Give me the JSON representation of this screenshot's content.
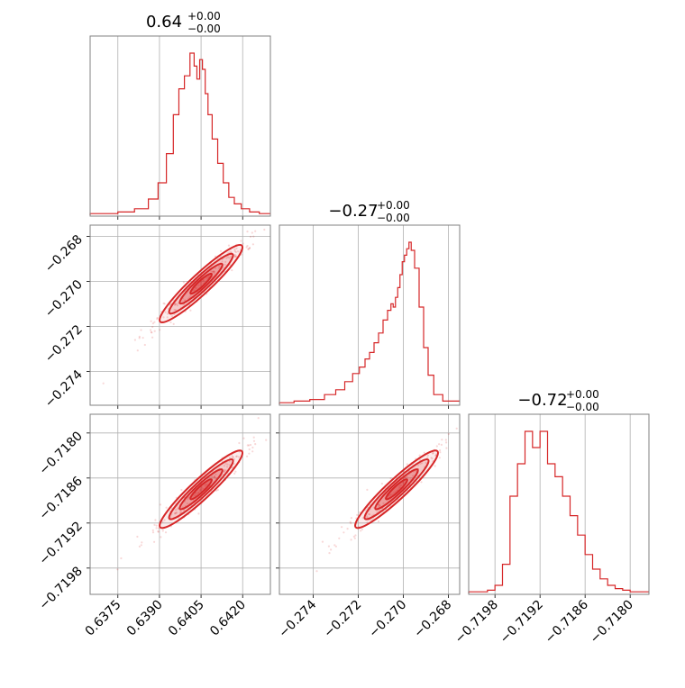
{
  "colors": {
    "series": "#d62728",
    "grid": "#b0b0b0",
    "frame": "#808080"
  },
  "chart_data": {
    "type": "corner",
    "grid": true,
    "params": [
      {
        "title": "0.64",
        "title_sup": "+0.00",
        "title_sub": "−0.00",
        "range": [
          0.6365,
          0.643
        ],
        "ticks": [
          0.6375,
          0.639,
          0.6405,
          0.642
        ],
        "tick_labels": [
          "0.6375",
          "0.6390",
          "0.6405",
          "0.6420"
        ],
        "hist_x": [
          0.6366,
          0.6372,
          0.6378,
          0.6384,
          0.6388,
          0.6391,
          0.6394,
          0.6396,
          0.6398,
          0.64,
          0.6402,
          0.6403,
          0.6404,
          0.6405,
          0.6406,
          0.6407,
          0.6408,
          0.641,
          0.6412,
          0.6414,
          0.6416,
          0.6418,
          0.6421,
          0.6424,
          0.6428
        ],
        "hist_y": [
          1,
          1,
          2,
          4,
          10,
          20,
          38,
          62,
          78,
          86,
          100,
          92,
          84,
          96,
          90,
          75,
          62,
          47,
          32,
          20,
          11,
          7,
          4,
          2,
          1
        ]
      },
      {
        "title": "−0.27",
        "title_sup": "+0.00",
        "title_sub": "−0.00",
        "range": [
          -0.2755,
          -0.2675
        ],
        "ticks": [
          -0.274,
          -0.272,
          -0.27,
          -0.268
        ],
        "tick_labels": [
          "−0.274",
          "−0.272",
          "−0.270",
          "−0.268"
        ],
        "hist_x": [
          -0.2752,
          -0.2745,
          -0.2738,
          -0.2732,
          -0.2728,
          -0.2724,
          -0.2721,
          -0.2718,
          -0.2716,
          -0.2714,
          -0.2712,
          -0.271,
          -0.2708,
          -0.2706,
          -0.2705,
          -0.2704,
          -0.2703,
          -0.2702,
          -0.2701,
          -0.27,
          -0.2699,
          -0.2698,
          -0.2697,
          -0.2696,
          -0.2694,
          -0.2692,
          -0.269,
          -0.2688,
          -0.2685,
          -0.268
        ],
        "hist_y": [
          1,
          2,
          3,
          6,
          9,
          14,
          19,
          23,
          28,
          32,
          38,
          44,
          52,
          58,
          62,
          60,
          66,
          72,
          80,
          88,
          92,
          96,
          100,
          95,
          84,
          60,
          35,
          18,
          6,
          2
        ]
      },
      {
        "title": "−0.72",
        "title_sup": "+0.00",
        "title_sub": "−0.00",
        "range": [
          -0.72015,
          -0.71775
        ],
        "ticks": [
          -0.7198,
          -0.7192,
          -0.7186,
          -0.718
        ],
        "tick_labels": [
          "−0.7198",
          "−0.7192",
          "−0.7186",
          "−0.7180"
        ],
        "hist_x": [
          -0.7201,
          -0.71995,
          -0.71985,
          -0.71975,
          -0.71965,
          -0.71955,
          -0.71945,
          -0.71935,
          -0.71925,
          -0.71915,
          -0.71905,
          -0.71895,
          -0.71885,
          -0.71875,
          -0.71865,
          -0.71855,
          -0.71845,
          -0.71835,
          -0.71825,
          -0.71815,
          -0.71805,
          -0.71795,
          -0.71785
        ],
        "hist_y": [
          1,
          1,
          2,
          5,
          18,
          60,
          80,
          100,
          90,
          100,
          80,
          72,
          60,
          48,
          36,
          24,
          15,
          9,
          5,
          3,
          2,
          1,
          1
        ]
      }
    ],
    "scatter_pairs": [
      {
        "x_param": 0,
        "y_param": 1
      },
      {
        "x_param": 0,
        "y_param": 2
      },
      {
        "x_param": 1,
        "y_param": 2
      }
    ]
  }
}
